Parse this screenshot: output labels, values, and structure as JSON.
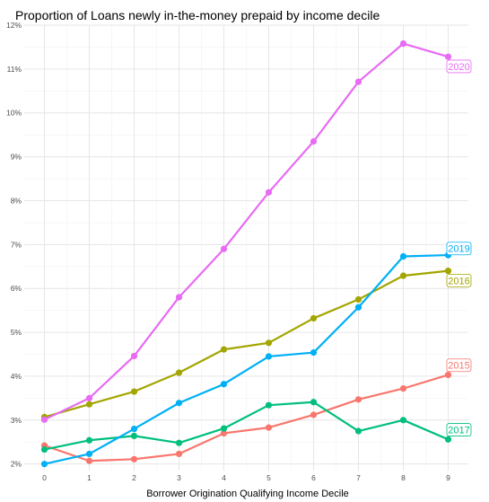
{
  "chart_data": {
    "type": "line",
    "title": "Proportion of Loans newly in-the-money prepaid by income decile",
    "xlabel": "Borrower Origination Qualifying Income Decile",
    "ylabel": "",
    "x": [
      0,
      1,
      2,
      3,
      4,
      5,
      6,
      7,
      8,
      9
    ],
    "x_tick_labels": [
      "0",
      "1",
      "2",
      "3",
      "4",
      "5",
      "6",
      "7",
      "8",
      "9"
    ],
    "y_tick_labels": [
      "2%",
      "3%",
      "4%",
      "5%",
      "6%",
      "7%",
      "8%",
      "9%",
      "10%",
      "11%",
      "12%"
    ],
    "y_ticks": [
      2,
      3,
      4,
      5,
      6,
      7,
      8,
      9,
      10,
      11,
      12
    ],
    "ylim": [
      1.85,
      12
    ],
    "xlim": [
      -0.45,
      9.45
    ],
    "grid": true,
    "legend": "none (end-of-line labels)",
    "series": [
      {
        "name": "2015",
        "color": "#F8766D",
        "values": [
          2.42,
          2.07,
          2.11,
          2.23,
          2.7,
          2.83,
          3.12,
          3.47,
          3.72,
          4.03
        ]
      },
      {
        "name": "2016",
        "color": "#A3A500",
        "values": [
          3.07,
          3.36,
          3.65,
          4.08,
          4.61,
          4.76,
          5.32,
          5.75,
          6.29,
          6.4
        ]
      },
      {
        "name": "2017",
        "color": "#00BF7D",
        "values": [
          2.33,
          2.54,
          2.64,
          2.48,
          2.81,
          3.34,
          3.41,
          2.75,
          3.0,
          2.56
        ]
      },
      {
        "name": "2019",
        "color": "#00B0F6",
        "values": [
          2.0,
          2.23,
          2.8,
          3.39,
          3.82,
          4.45,
          4.54,
          5.57,
          6.73,
          6.76
        ]
      },
      {
        "name": "2020",
        "color": "#E76BF3",
        "values": [
          3.01,
          3.5,
          4.46,
          5.8,
          6.9,
          8.19,
          9.35,
          10.71,
          11.58,
          11.28
        ]
      }
    ],
    "label_offsets_pct": {
      "2015": 0.22,
      "2016": -0.22,
      "2017": 0.22,
      "2019": 0.15,
      "2020": -0.22
    }
  }
}
